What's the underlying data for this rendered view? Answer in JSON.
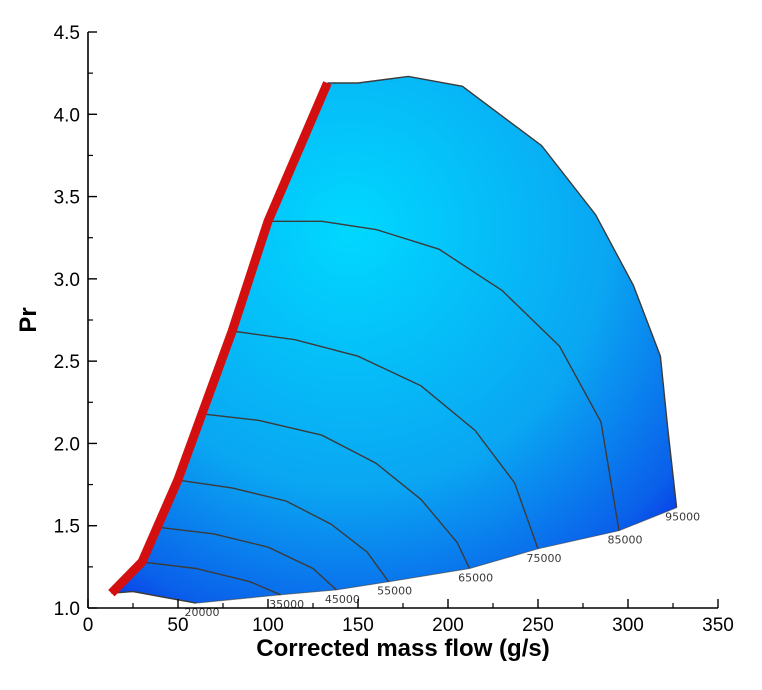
{
  "chart_data": {
    "type": "line",
    "title": "",
    "xlabel": "Corrected mass flow (g/s)",
    "ylabel": "Pr",
    "xlim": [
      0,
      350
    ],
    "ylim": [
      1.0,
      4.5
    ],
    "xticks": [
      "0",
      "50",
      "100",
      "150",
      "200",
      "250",
      "300",
      "350"
    ],
    "yticks": [
      "1.0",
      "1.5",
      "2.0",
      "2.5",
      "3.0",
      "3.5",
      "4.0",
      "4.5"
    ],
    "xtick_values": [
      0,
      50,
      100,
      150,
      200,
      250,
      300,
      350
    ],
    "ytick_values": [
      1.0,
      1.5,
      2.0,
      2.5,
      3.0,
      3.5,
      4.0,
      4.5
    ],
    "grid": false,
    "legend": "none",
    "colors": {
      "surge_line": "#d40f0f",
      "speed_lines": "#3b3b3b",
      "fill_light": "#00d8ff",
      "fill_dark": "#0a1ee6"
    },
    "surge_line": {
      "x": [
        13,
        30,
        50,
        80,
        100,
        133
      ],
      "y": [
        1.09,
        1.28,
        1.78,
        2.68,
        3.35,
        4.19
      ]
    },
    "speed_lines": [
      {
        "label": "20000",
        "x": [
          13,
          25,
          40,
          60
        ],
        "y": [
          1.09,
          1.1,
          1.07,
          1.03
        ]
      },
      {
        "label": "35000",
        "x": [
          30,
          60,
          90,
          107
        ],
        "y": [
          1.28,
          1.24,
          1.16,
          1.08
        ]
      },
      {
        "label": "45000",
        "x": [
          40,
          70,
          100,
          125,
          138
        ],
        "y": [
          1.49,
          1.45,
          1.37,
          1.24,
          1.11
        ]
      },
      {
        "label": "55000",
        "x": [
          48,
          80,
          110,
          135,
          155,
          167
        ],
        "y": [
          1.78,
          1.73,
          1.65,
          1.51,
          1.34,
          1.16
        ]
      },
      {
        "label": "65000",
        "x": [
          63,
          95,
          130,
          160,
          185,
          205,
          212
        ],
        "y": [
          2.18,
          2.14,
          2.05,
          1.88,
          1.66,
          1.4,
          1.24
        ]
      },
      {
        "label": "75000",
        "x": [
          82,
          115,
          150,
          185,
          215,
          237,
          250
        ],
        "y": [
          2.68,
          2.63,
          2.53,
          2.35,
          2.08,
          1.76,
          1.36
        ]
      },
      {
        "label": "85000",
        "x": [
          100,
          130,
          160,
          195,
          230,
          262,
          285,
          295
        ],
        "y": [
          3.35,
          3.35,
          3.3,
          3.18,
          2.93,
          2.59,
          2.13,
          1.47
        ]
      },
      {
        "label": "95000",
        "x": [
          133,
          150,
          178,
          208,
          252,
          282,
          303,
          318,
          322,
          327
        ],
        "y": [
          4.19,
          4.19,
          4.23,
          4.17,
          3.81,
          3.39,
          2.96,
          2.53,
          2.1,
          1.61
        ]
      }
    ],
    "choke_boundary": {
      "x": [
        60,
        107,
        138,
        167,
        212,
        250,
        295,
        327
      ],
      "y": [
        1.03,
        1.08,
        1.11,
        1.16,
        1.24,
        1.36,
        1.47,
        1.61
      ]
    }
  }
}
